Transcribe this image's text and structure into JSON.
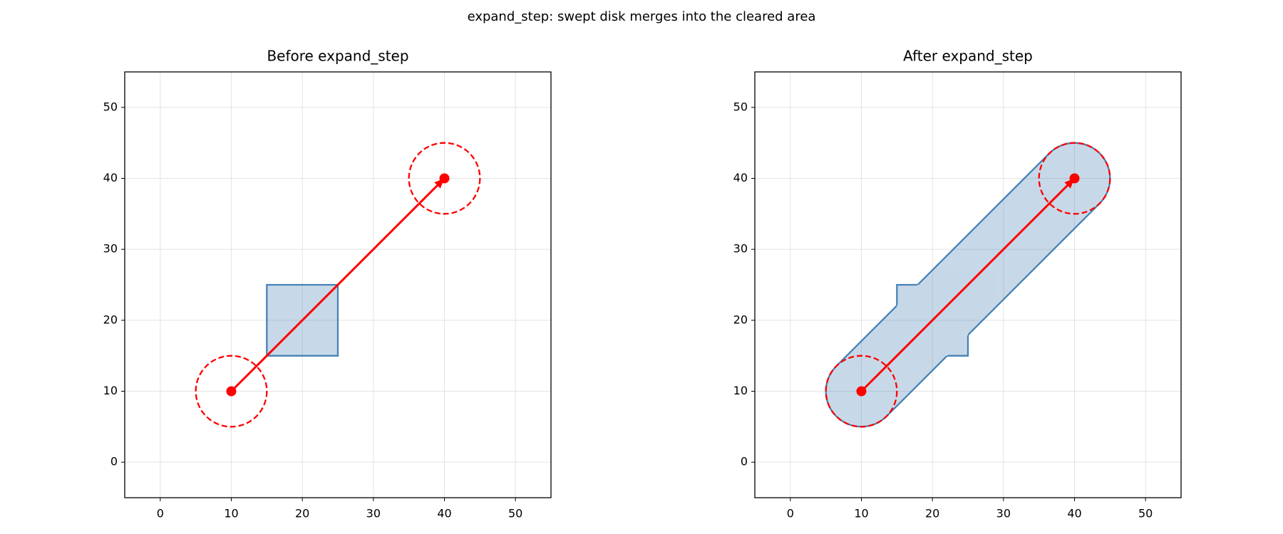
{
  "title": "expand_step: swept disk merges into the cleared area",
  "chart_data": [
    {
      "type": "region",
      "title": "Before expand_step",
      "xlim": [
        -5,
        55
      ],
      "ylim": [
        -5,
        55
      ],
      "xticks": [
        0,
        10,
        20,
        30,
        40,
        50
      ],
      "yticks": [
        0,
        10,
        20,
        30,
        40,
        50
      ],
      "grid": true,
      "region": {
        "x": [
          15,
          25,
          25,
          15
        ],
        "y": [
          15,
          15,
          25,
          25
        ],
        "color": "#4682b4"
      },
      "disks": {
        "x": [
          10,
          40
        ],
        "y": [
          10,
          40
        ],
        "radius": 5,
        "color": "#ff0000"
      }
    },
    {
      "type": "swept_region",
      "title": "After expand_step",
      "xlim": [
        -5,
        55
      ],
      "ylim": [
        -5,
        55
      ],
      "xticks": [
        0,
        10,
        20,
        30,
        40,
        50
      ],
      "yticks": [
        0,
        10,
        20,
        30,
        40,
        50
      ],
      "grid": true,
      "region": {
        "x": [
          15,
          25,
          25,
          15
        ],
        "y": [
          15,
          15,
          25,
          25
        ],
        "color": "#4682b4"
      },
      "disks": {
        "x": [
          10,
          40
        ],
        "y": [
          10,
          40
        ],
        "radius": 5,
        "color": "#ff0000"
      }
    }
  ]
}
